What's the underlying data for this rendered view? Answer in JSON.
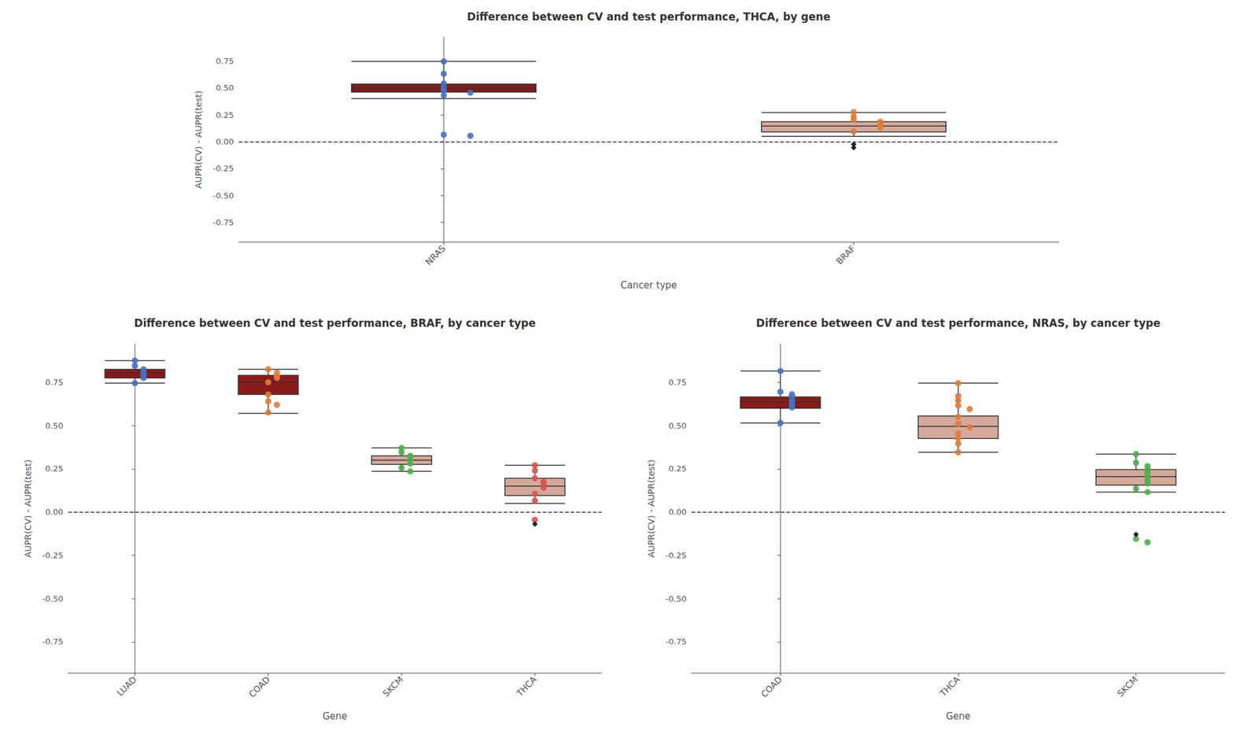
{
  "chart_data": [
    {
      "type": "boxplot",
      "title": "Difference between CV and test performance, THCA, by gene",
      "xlabel": "Cancer type",
      "ylabel": "AUPR(CV) - AUPR(test)",
      "ylim": [
        -0.93,
        0.97
      ],
      "yticks": [
        -0.75,
        {
          "value": -0.5,
          "label": "-0.50"
        },
        -0.25,
        {
          "value": 0,
          "label": "0.00"
        },
        0.25,
        {
          "value": 0.5,
          "label": "0.50"
        },
        0.75
      ],
      "grid": false,
      "reference_line": {
        "y": 0,
        "line_style": "dashed",
        "color": "#333333"
      },
      "categories": [
        "NRAS",
        "BRAF"
      ],
      "boxes": [
        {
          "q1": 0.46,
          "median": 0.495,
          "q3": 0.535,
          "whisker_low": 0.4,
          "whisker_high": 0.745,
          "color": "#8b1a1a"
        },
        {
          "q1": 0.09,
          "median": 0.145,
          "q3": 0.185,
          "whisker_low": 0.05,
          "whisker_high": 0.27,
          "color": "#d4a99a"
        }
      ],
      "points": [
        {
          "values": [
            0.745,
            0.63,
            0.54,
            0.5,
            0.475,
            0.455,
            0.43,
            0.065,
            0.055
          ],
          "color": "#4472c4",
          "marker": "circle"
        },
        {
          "values": [
            0.275,
            0.23,
            0.2,
            0.185,
            0.175,
            0.155,
            0.13,
            0.095
          ],
          "color": "#e07b39",
          "marker": "circle"
        }
      ],
      "outliers": {
        "color": "#222222",
        "marker": "diamond",
        "values": [
          [],
          [
            -0.025,
            -0.055
          ]
        ]
      }
    },
    {
      "type": "boxplot",
      "title": "Difference between CV and test performance, BRAF, by cancer type",
      "xlabel": "Gene",
      "ylabel": "AUPR(CV) - AUPR(test)",
      "ylim": [
        -0.93,
        0.97
      ],
      "yticks": [
        -0.75,
        {
          "value": -0.5,
          "label": "-0.50"
        },
        -0.25,
        {
          "value": 0,
          "label": "0.00"
        },
        0.25,
        {
          "value": 0.5,
          "label": "0.50"
        },
        0.75
      ],
      "grid": false,
      "reference_line": {
        "y": 0,
        "line_style": "dashed",
        "color": "#333333"
      },
      "categories": [
        "LUAD",
        "COAD",
        "SKCM",
        "THCA"
      ],
      "boxes": [
        {
          "q1": 0.775,
          "median": 0.805,
          "q3": 0.825,
          "whisker_low": 0.745,
          "whisker_high": 0.875,
          "color": "#8b1a1a"
        },
        {
          "q1": 0.68,
          "median": 0.75,
          "q3": 0.79,
          "whisker_low": 0.57,
          "whisker_high": 0.825,
          "color": "#8b1a1a"
        },
        {
          "q1": 0.275,
          "median": 0.3,
          "q3": 0.325,
          "whisker_low": 0.235,
          "whisker_high": 0.37,
          "color": "#d4a99a"
        },
        {
          "q1": 0.095,
          "median": 0.15,
          "q3": 0.195,
          "whisker_low": 0.05,
          "whisker_high": 0.27,
          "color": "#d4a99a"
        }
      ],
      "points": [
        {
          "values": [
            0.875,
            0.845,
            0.825,
            0.805,
            0.795,
            0.775,
            0.745
          ],
          "color": "#4472c4",
          "marker": "circle"
        },
        {
          "values": [
            0.825,
            0.805,
            0.785,
            0.775,
            0.75,
            0.68,
            0.64,
            0.62,
            0.575
          ],
          "color": "#e07b39",
          "marker": "circle"
        },
        {
          "values": [
            0.37,
            0.345,
            0.325,
            0.305,
            0.28,
            0.255,
            0.235
          ],
          "color": "#4cae4c",
          "marker": "circle"
        },
        {
          "values": [
            0.27,
            0.24,
            0.195,
            0.175,
            0.165,
            0.14,
            0.105,
            0.065,
            -0.045
          ],
          "color": "#d9534f",
          "marker": "circle"
        }
      ],
      "outliers": {
        "color": "#222222",
        "marker": "diamond",
        "values": [
          [],
          [],
          [],
          [
            -0.07
          ]
        ]
      }
    },
    {
      "type": "boxplot",
      "title": "Difference between CV and test performance, NRAS, by cancer type",
      "xlabel": "Gene",
      "ylabel": "AUPR(CV) - AUPR(test)",
      "ylim": [
        -0.93,
        0.97
      ],
      "yticks": [
        -0.75,
        {
          "value": -0.5,
          "label": "-0.50"
        },
        -0.25,
        {
          "value": 0,
          "label": "0.00"
        },
        0.25,
        {
          "value": 0.5,
          "label": "0.50"
        },
        0.75
      ],
      "grid": false,
      "reference_line": {
        "y": 0,
        "line_style": "dashed",
        "color": "#333333"
      },
      "categories": [
        "COAD",
        "THCA",
        "SKCM"
      ],
      "boxes": [
        {
          "q1": 0.6,
          "median": 0.635,
          "q3": 0.665,
          "whisker_low": 0.515,
          "whisker_high": 0.815,
          "color": "#8b1a1a"
        },
        {
          "q1": 0.425,
          "median": 0.495,
          "q3": 0.555,
          "whisker_low": 0.345,
          "whisker_high": 0.745,
          "color": "#d4a99a"
        },
        {
          "q1": 0.155,
          "median": 0.205,
          "q3": 0.245,
          "whisker_low": 0.115,
          "whisker_high": 0.335,
          "color": "#d4a99a"
        }
      ],
      "points": [
        {
          "values": [
            0.815,
            0.695,
            0.68,
            0.665,
            0.645,
            0.635,
            0.62,
            0.605,
            0.515
          ],
          "color": "#4472c4",
          "marker": "circle"
        },
        {
          "values": [
            0.745,
            0.67,
            0.645,
            0.615,
            0.595,
            0.55,
            0.51,
            0.49,
            0.455,
            0.425,
            0.395,
            0.345
          ],
          "color": "#e07b39",
          "marker": "circle"
        },
        {
          "values": [
            0.335,
            0.285,
            0.265,
            0.245,
            0.225,
            0.205,
            0.185,
            0.165,
            0.135,
            0.115,
            -0.155,
            -0.175
          ],
          "color": "#4cae4c",
          "marker": "circle"
        }
      ],
      "outliers": {
        "color": "#222222",
        "marker": "diamond",
        "values": [
          [],
          [],
          [
            -0.13
          ]
        ]
      }
    }
  ]
}
